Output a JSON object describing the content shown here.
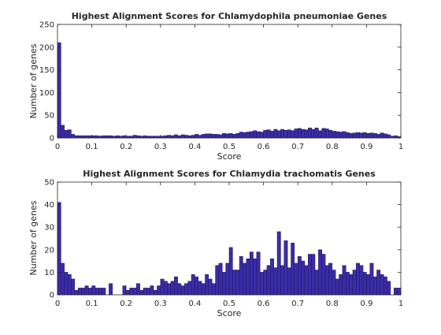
{
  "figure": {
    "bar_color": "#3b2ca8",
    "bar_edge_color": "#1a1550"
  },
  "chart_data": [
    {
      "type": "bar",
      "title": "Highest Alignment Scores for Chlamydophila pneumoniae Genes",
      "xlabel": "Score",
      "ylabel": "Number of genes",
      "xlim": [
        0,
        1
      ],
      "ylim": [
        0,
        250
      ],
      "xticks": [
        "0",
        "0.1",
        "0.2",
        "0.3",
        "0.4",
        "0.5",
        "0.6",
        "0.7",
        "0.8",
        "0.9",
        "1"
      ],
      "yticks": [
        "0",
        "50",
        "100",
        "150",
        "200",
        "250"
      ],
      "grid": false,
      "bin_width": 0.01,
      "bin_start": 0,
      "values": [
        210,
        28,
        17,
        18,
        8,
        5,
        5,
        5,
        5,
        5,
        5,
        5,
        4,
        5,
        5,
        5,
        4,
        5,
        4,
        5,
        4,
        4,
        6,
        5,
        4,
        5,
        4,
        4,
        4,
        4,
        4,
        5,
        6,
        5,
        7,
        5,
        7,
        6,
        5,
        6,
        8,
        6,
        8,
        9,
        9,
        8,
        8,
        7,
        10,
        9,
        10,
        8,
        10,
        13,
        12,
        13,
        14,
        16,
        14,
        13,
        17,
        18,
        15,
        19,
        16,
        19,
        17,
        18,
        16,
        20,
        21,
        19,
        18,
        22,
        19,
        22,
        16,
        21,
        20,
        17,
        15,
        14,
        13,
        14,
        12,
        10,
        11,
        12,
        11,
        12,
        10,
        11,
        10,
        8,
        11,
        9,
        7,
        4,
        5,
        3
      ]
    },
    {
      "type": "bar",
      "title": "Highest Alignment Scores for Chlamydia trachomatis Genes",
      "xlabel": "Score",
      "ylabel": "Number of genes",
      "xlim": [
        0,
        1
      ],
      "ylim": [
        0,
        50
      ],
      "xticks": [
        "0",
        "0.1",
        "0.2",
        "0.3",
        "0.4",
        "0.5",
        "0.6",
        "0.7",
        "0.8",
        "0.9",
        "1"
      ],
      "yticks": [
        "0",
        "10",
        "20",
        "30",
        "40",
        "50"
      ],
      "grid": false,
      "bin_width": 0.01,
      "bin_start": 0,
      "values": [
        41,
        14,
        10,
        9,
        7,
        2,
        3,
        3,
        4,
        3,
        4,
        3,
        3,
        3,
        0,
        5,
        0,
        0,
        0,
        4,
        2,
        3,
        3,
        5,
        2,
        3,
        3,
        4,
        2,
        4,
        7,
        6,
        5,
        6,
        8,
        5,
        4,
        5,
        6,
        9,
        8,
        6,
        5,
        9,
        7,
        5,
        13,
        14,
        10,
        14,
        21,
        11,
        11,
        17,
        14,
        16,
        19,
        16,
        19,
        10,
        11,
        13,
        16,
        12,
        28,
        13,
        24,
        12,
        23,
        14,
        17,
        15,
        13,
        18,
        18,
        11,
        20,
        18,
        13,
        14,
        11,
        7,
        9,
        13,
        10,
        9,
        11,
        14,
        13,
        10,
        9,
        14,
        8,
        11,
        9,
        8,
        6,
        0,
        3,
        3
      ]
    }
  ]
}
